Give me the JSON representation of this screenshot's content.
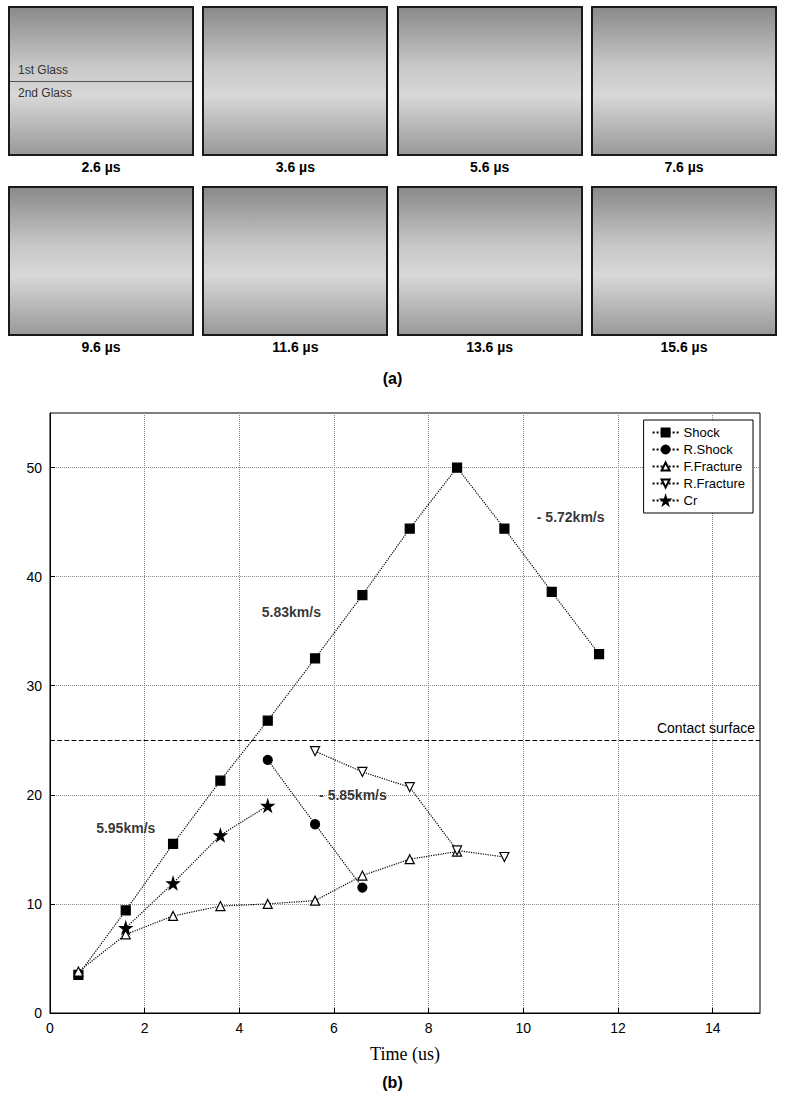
{
  "panel_a": {
    "label": "(a)",
    "frame_texts": [
      "1st Glass",
      "2nd Glass"
    ],
    "frames": [
      "2.6 µs",
      "3.6 µs",
      "5.6 µs",
      "7.6 µs",
      "9.6 µs",
      "11.6 µs",
      "13.6 µs",
      "15.6 µs"
    ]
  },
  "panel_b": {
    "label": "(b)"
  },
  "chart_data": {
    "type": "line",
    "x_label": "Time (us)",
    "xlim": [
      0,
      15
    ],
    "xticks": [
      0,
      2,
      4,
      6,
      8,
      10,
      12,
      14
    ],
    "ylim": [
      0,
      55
    ],
    "yticks": [
      0,
      10,
      20,
      30,
      40,
      50
    ],
    "grid": true,
    "legend": "top-right",
    "series": [
      {
        "name": "Shock",
        "color": "#000000",
        "marker": "square",
        "line_style": "dotted",
        "x": [
          0.6,
          1.6,
          2.6,
          3.6,
          4.6,
          5.6,
          6.6,
          7.6,
          8.6,
          9.6,
          10.6,
          11.6
        ],
        "values": [
          3.5,
          9.4,
          15.5,
          21.3,
          26.8,
          32.5,
          38.3,
          44.4,
          50.0,
          44.4,
          38.6,
          32.9
        ]
      },
      {
        "name": "R.Shock",
        "color": "#000000",
        "marker": "circle",
        "line_style": "dotted",
        "x": [
          4.6,
          5.6,
          6.6
        ],
        "values": [
          23.2,
          17.3,
          11.5
        ]
      },
      {
        "name": "F.Fracture",
        "color": "#000000",
        "marker": "triangle-open",
        "line_style": "dotted",
        "x": [
          0.6,
          1.6,
          2.6,
          3.6,
          4.6,
          5.6,
          6.6,
          7.6,
          8.6
        ],
        "values": [
          3.8,
          7.2,
          8.9,
          9.8,
          10.0,
          10.3,
          12.6,
          14.1,
          14.8
        ]
      },
      {
        "name": "R.Fracture",
        "color": "#000000",
        "marker": "triangle-down-open",
        "line_style": "dotted",
        "x": [
          5.6,
          6.6,
          7.6,
          8.6,
          9.6
        ],
        "values": [
          24.0,
          22.1,
          20.7,
          14.9,
          14.3
        ]
      },
      {
        "name": "Cr",
        "color": "#000000",
        "marker": "star",
        "line_style": "dotted",
        "x": [
          1.6,
          2.6,
          3.6,
          4.6
        ],
        "values": [
          7.8,
          11.9,
          16.3,
          19.0
        ]
      }
    ],
    "reference_lines": [
      {
        "value": 25,
        "label": "Contact surface",
        "line_style": "dashed"
      }
    ],
    "annotations": [
      {
        "text": "5.95km/s",
        "x": 1.6,
        "y": 17.0
      },
      {
        "text": "5.83km/s",
        "x": 5.1,
        "y": 36.8
      },
      {
        "text": "- 5.85km/s",
        "x": 6.4,
        "y": 20.0
      },
      {
        "text": "- 5.72km/s",
        "x": 11.0,
        "y": 45.5
      }
    ]
  }
}
